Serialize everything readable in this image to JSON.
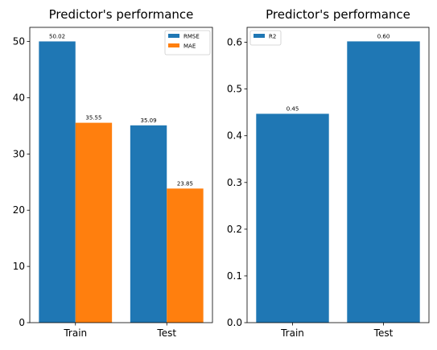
{
  "chart_data": [
    {
      "type": "bar",
      "title": "Predictor's performance",
      "categories": [
        "Train",
        "Test"
      ],
      "series": [
        {
          "name": "RMSE",
          "values": [
            50.02,
            35.09
          ],
          "labels": [
            "50.02",
            "35.09"
          ],
          "color": "#1f77b4"
        },
        {
          "name": "MAE",
          "values": [
            35.55,
            23.85
          ],
          "labels": [
            "35.55",
            "23.85"
          ],
          "color": "#ff7f0e"
        }
      ],
      "ylim": [
        0,
        52.52
      ],
      "yticks": [
        0,
        10,
        20,
        30,
        40,
        50
      ],
      "ytick_labels": [
        "0",
        "10",
        "20",
        "30",
        "40",
        "50"
      ],
      "legend": "top-right",
      "grid": false
    },
    {
      "type": "bar",
      "title": "Predictor's performance",
      "categories": [
        "Train",
        "Test"
      ],
      "series": [
        {
          "name": "R2",
          "values": [
            0.447,
            0.602
          ],
          "labels": [
            "0.45",
            "0.60"
          ],
          "color": "#1f77b4"
        }
      ],
      "ylim": [
        0,
        0.632
      ],
      "yticks": [
        0,
        0.1,
        0.2,
        0.3,
        0.4,
        0.5,
        0.6
      ],
      "ytick_labels": [
        "0.0",
        "0.1",
        "0.2",
        "0.3",
        "0.4",
        "0.5",
        "0.6"
      ],
      "legend": "top-left",
      "grid": false
    }
  ]
}
